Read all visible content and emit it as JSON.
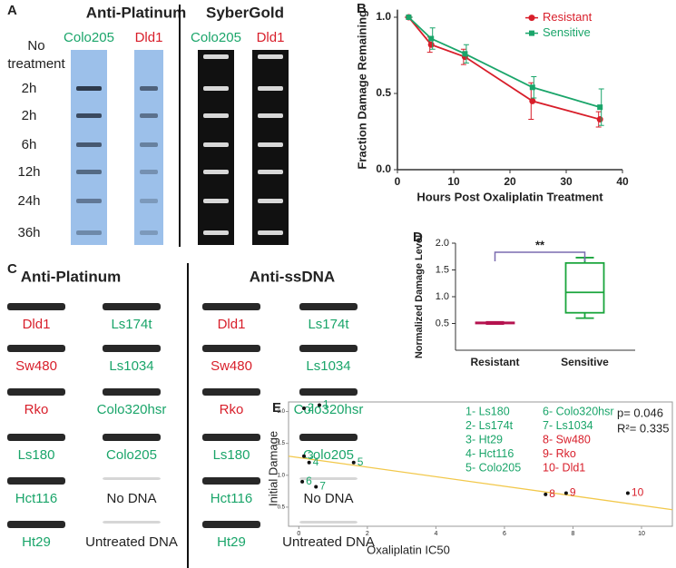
{
  "panel_a": {
    "label": "A",
    "headers": [
      "Anti-Platinum",
      "SyberGold"
    ],
    "columns": [
      "Colo205",
      "Dld1",
      "Colo205",
      "Dld1"
    ],
    "rows": [
      "No treatment",
      "2h",
      "2h",
      "6h",
      "12h",
      "24h",
      "36h"
    ]
  },
  "panel_c": {
    "label": "C",
    "headers": [
      "Anti-Platinum",
      "Anti-ssDNA"
    ],
    "left_labels": [
      "Dld1",
      "Sw480",
      "Rko",
      "Ls180",
      "Hct116",
      "Ht29"
    ],
    "right_labels": [
      "Ls174t",
      "Ls1034",
      "Colo320hsr",
      "Colo205",
      "No DNA",
      "Untreated DNA"
    ]
  },
  "chart_data": [
    {
      "type": "line",
      "label": "B",
      "xlabel": "Hours Post Oxaliplatin Treatment",
      "ylabel": "Fraction Damage Remaining",
      "x": [
        2,
        6,
        12,
        24,
        36
      ],
      "xlim": [
        0,
        40
      ],
      "xticks": [
        0,
        10,
        20,
        30,
        40
      ],
      "ylim": [
        0,
        1.05
      ],
      "yticks": [
        {
          "value": 0,
          "label": "0.0"
        },
        0.5,
        {
          "value": 1,
          "label": "1.0"
        }
      ],
      "legend": "upper right",
      "series": [
        {
          "name": "Resistant",
          "color": "#d81e2a",
          "marker": "circle",
          "values": [
            1.0,
            0.82,
            0.74,
            0.45,
            0.33
          ],
          "errors": [
            0,
            0.05,
            0.05,
            0.12,
            0.05
          ]
        },
        {
          "name": "Sensitive",
          "color": "#1aa56a",
          "marker": "square",
          "values": [
            1.0,
            0.86,
            0.76,
            0.54,
            0.41
          ],
          "errors": [
            0,
            0.07,
            0.06,
            0.07,
            0.12
          ]
        }
      ]
    },
    {
      "type": "box",
      "label": "D",
      "ylabel": "Normalized Damage Level",
      "categories": [
        "Resistant",
        "Sensitive"
      ],
      "ylim": [
        0,
        2.0
      ],
      "yticks": [
        0.5,
        {
          "value": 1,
          "label": "1.0"
        },
        1.5,
        {
          "value": 2,
          "label": "2.0"
        }
      ],
      "boxes": [
        {
          "min": 0.49,
          "q1": 0.5,
          "median": 0.51,
          "q3": 0.52,
          "max": 0.53,
          "color": "#b5124f"
        },
        {
          "min": 0.6,
          "q1": 0.7,
          "median": 1.08,
          "q3": 1.63,
          "max": 1.73,
          "color": "#1aa53c"
        }
      ],
      "annotation": "**"
    },
    {
      "type": "scatter",
      "label": "E",
      "xlabel": "Oxaliplatin IC50",
      "ylabel": "Initial Damage",
      "xlim": [
        -0.3,
        10.9
      ],
      "xticks": [
        0,
        2,
        4,
        6,
        8,
        10
      ],
      "ylim": [
        0.2,
        2.15
      ],
      "yticks": [
        0.5,
        {
          "value": 1,
          "label": "1.0"
        },
        1.5,
        {
          "value": 2,
          "label": "2.0"
        }
      ],
      "x": [
        0.6,
        0.15,
        0.15,
        0.3,
        1.6,
        0.1,
        0.5,
        7.2,
        7.8,
        9.6
      ],
      "values": [
        2.1,
        2.05,
        1.3,
        1.2,
        1.2,
        0.9,
        0.82,
        0.7,
        0.72,
        0.72
      ],
      "point_labels": [
        "1",
        "2",
        "3",
        "4",
        "5",
        "6",
        "7",
        "8",
        "9",
        "10"
      ],
      "point_colors": [
        "#1aa56a",
        "#1aa56a",
        "#1aa56a",
        "#1aa56a",
        "#1aa56a",
        "#1aa56a",
        "#1aa56a",
        "#d81e2a",
        "#d81e2a",
        "#d81e2a"
      ],
      "key": [
        "1- Ls180",
        "2- Ls174t",
        "3- Ht29",
        "4- Hct116",
        "5- Colo205",
        "6- Colo320hsr",
        "7- Ls1034",
        "8- Sw480",
        "9- Rko",
        "10- Dld1"
      ],
      "stats": [
        "p= 0.046",
        "R²= 0.335"
      ],
      "trendline": {
        "color": "#f2c84b",
        "x": [
          -0.3,
          10.9
        ],
        "values": [
          1.3,
          0.46
        ]
      }
    }
  ]
}
